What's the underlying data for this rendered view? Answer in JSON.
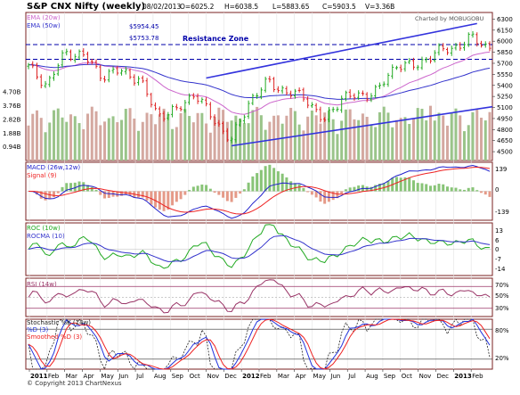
{
  "header": {
    "title": "S&P CNX Nifty (weekly)",
    "date": "08/02/2013",
    "open": "O=6025.2",
    "high": "H=6038.5",
    "low": "L=5883.65",
    "close": "C=5903.5",
    "volume": "V=3.36B",
    "credit": "Charted by MOBUGOBU",
    "footer": "© Copyright 2013 ChartNexus"
  },
  "colors": {
    "up": "#22aa22",
    "down": "#dd2222",
    "ema20": "#cc66cc",
    "ema50": "#3333cc",
    "trend": "#3333dd",
    "volume": "#d4a8a0",
    "volume_up": "#9ac48a",
    "macd": "#2222cc",
    "signal": "#ee2222",
    "roc": "#22aa22",
    "rocma": "#3333cc",
    "rsi": "#993366",
    "stoch_k": "#222222",
    "stoch_d": "#2233dd",
    "stoch_sd": "#ee2222",
    "frame": "#7a2020",
    "resistance": "#0000aa"
  },
  "chart_data": [
    {
      "type": "candlestick",
      "title": "S&P CNX Nifty (weekly)",
      "period": "weekly, Jan 2011 – Feb 2013",
      "legend": [
        "EMA (20w)",
        "EMA (50w)"
      ],
      "annotations": [
        "$5954.45",
        "$5753.78",
        "Resistance Zone"
      ],
      "resistance_levels": [
        5954.45,
        5753.78
      ],
      "y_ticks": [
        6300,
        6150,
        6000,
        5850,
        5700,
        5550,
        5400,
        5250,
        5100,
        4950,
        4800,
        4650,
        4500
      ],
      "ylim": [
        4380,
        6390
      ],
      "close_keypoints": [
        {
          "month": "Jan 2011",
          "close": 5650
        },
        {
          "month": "Feb 2011",
          "close": 5400
        },
        {
          "month": "Mar 2011",
          "close": 5850
        },
        {
          "month": "Apr 2011",
          "close": 5800
        },
        {
          "month": "May 2011",
          "close": 5530
        },
        {
          "month": "Jun 2011",
          "close": 5600
        },
        {
          "month": "Jul 2011",
          "close": 5480
        },
        {
          "month": "Aug 2011",
          "close": 5000
        },
        {
          "month": "Sep 2011",
          "close": 5050
        },
        {
          "month": "Oct 2011",
          "close": 5300
        },
        {
          "month": "Nov 2011",
          "close": 4950
        },
        {
          "month": "Dec 2011",
          "close": 4650
        },
        {
          "month": "Jan 2012",
          "close": 5200
        },
        {
          "month": "Feb 2012",
          "close": 5450
        },
        {
          "month": "Mar 2012",
          "close": 5300
        },
        {
          "month": "Apr 2012",
          "close": 5250
        },
        {
          "month": "May 2012",
          "close": 4900
        },
        {
          "month": "Jun 2012",
          "close": 5250
        },
        {
          "month": "Jul 2012",
          "close": 5250
        },
        {
          "month": "Aug 2012",
          "close": 5350
        },
        {
          "month": "Sep 2012",
          "close": 5700
        },
        {
          "month": "Oct 2012",
          "close": 5650
        },
        {
          "month": "Nov 2012",
          "close": 5850
        },
        {
          "month": "Dec 2012",
          "close": 5900
        },
        {
          "month": "Jan 2013",
          "close": 6050
        },
        {
          "month": "Feb 2013",
          "close": 5903.5
        }
      ]
    },
    {
      "type": "bar",
      "title": "Volume",
      "y_ticks": [
        "4.70B",
        "3.76B",
        "2.82B",
        "1.88B",
        "0.94B"
      ],
      "ylim": [
        0,
        5.2
      ]
    },
    {
      "type": "line",
      "title": "MACD (26w,12w)",
      "legend": [
        "MACD (26w,12w)",
        "Signal (9)"
      ],
      "y_ticks": [
        139,
        0,
        -139
      ],
      "ylim": [
        -170,
        170
      ]
    },
    {
      "type": "line",
      "title": "ROC (10w)",
      "legend": [
        "ROC (10w)",
        "ROCMA (10)"
      ],
      "y_ticks": [
        13,
        6,
        0,
        -7,
        -14
      ],
      "ylim": [
        -16,
        16
      ]
    },
    {
      "type": "line",
      "title": "RSI (14w)",
      "legend": [
        "RSI (14w)"
      ],
      "y_ticks": [
        "70%",
        "50%",
        "30%"
      ],
      "ylim": [
        15,
        85
      ]
    },
    {
      "type": "line",
      "title": "Stochastic %K (14w)",
      "legend": [
        "Stochastic %K (14w)",
        "%D (3)",
        "Smoothed %D (3)"
      ],
      "y_ticks": [
        "80%",
        "20%"
      ],
      "ylim": [
        0,
        100
      ]
    }
  ],
  "x_axis": {
    "labels": [
      "2011",
      "Feb",
      "Mar",
      "Apr",
      "May",
      "Jun",
      "Jul",
      "Aug",
      "Sep",
      "Oct",
      "Nov",
      "Dec",
      "2012",
      "Feb",
      "Mar",
      "Apr",
      "May",
      "Jun",
      "Jul",
      "Aug",
      "Sep",
      "Oct",
      "Nov",
      "Dec",
      "2013",
      "Feb"
    ],
    "bold": [
      "2011",
      "2012",
      "2013"
    ]
  }
}
